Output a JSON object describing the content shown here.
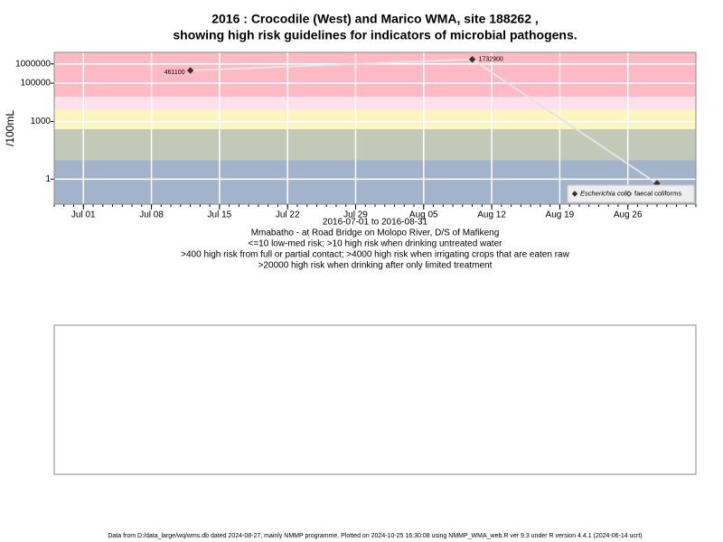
{
  "chart_data": {
    "type": "line",
    "title": "2016 : Crocodile (West) and Marico WMA, site 188262 ,",
    "subtitle": "showing high risk guidelines for indicators of microbial pathogens.",
    "y_label": "/100mL",
    "date_range": "2016-07-01 to 2016-08-31",
    "annotations": [
      "Mmabatho - at Road Bridge on Molopo River, D/S of Mafikeng",
      "<=10 low-med risk; >10 high risk when drinking untreated water",
      ">400 high risk from full or partial contact; >4000 high risk when irrigating crops that are eaten raw",
      ">20000 high risk when drinking after only limited treatment"
    ],
    "footer": "Data from D:/data_large/wq/wms.db dated 2024-08-27, mainly NMMP programme. Plotted on 2024-10-25 16:30:08 using NMMP_WMA_web.R ver 9.3 under R version 4.4.1 (2024-06-14 ucrt)",
    "x": [
      "2016-07-12",
      "2016-08-10",
      "2016-08-29"
    ],
    "series": [
      {
        "name": "Escherichia coli",
        "color": "#333333",
        "values": [
          461100,
          1732900,
          0.6
        ],
        "value_labels": [
          "461100",
          "1732900",
          null
        ]
      },
      {
        "name": "faecal coliforms",
        "color": "#333333",
        "values": [
          null,
          null,
          null
        ]
      }
    ],
    "thresholds": [
      10,
      400,
      4000,
      20000
    ],
    "band_colors": [
      "#a3b3cc",
      "#c3c9b8",
      "#fdf5c0",
      "#fde0ec",
      "#fdb9c4"
    ],
    "xlim": [
      "2016-06-28",
      "2016-09-02"
    ],
    "xticks": [
      {
        "value": "2016-07-01",
        "label": "Jul 01"
      },
      {
        "value": "2016-07-08",
        "label": "Jul 08"
      },
      {
        "value": "2016-07-15",
        "label": "Jul 15"
      },
      {
        "value": "2016-07-22",
        "label": "Jul 22"
      },
      {
        "value": "2016-07-29",
        "label": "Jul 29"
      },
      {
        "value": "2016-08-05",
        "label": "Aug 05"
      },
      {
        "value": "2016-08-12",
        "label": "Aug 12"
      },
      {
        "value": "2016-08-19",
        "label": "Aug 19"
      },
      {
        "value": "2016-08-26",
        "label": "Aug 26"
      }
    ],
    "ylim": [
      0.05,
      4000000
    ],
    "yticks": [
      1,
      1000,
      100000,
      1000000
    ],
    "log_y": true,
    "grid": true,
    "legend": "bottom-right"
  }
}
